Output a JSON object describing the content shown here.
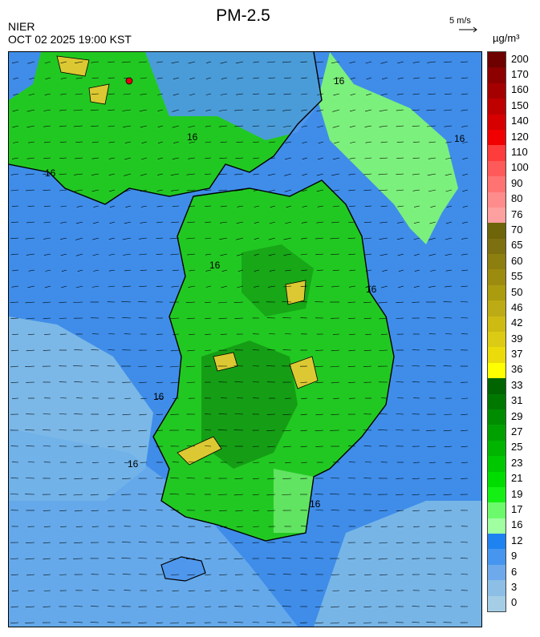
{
  "header": {
    "title": "PM-2.5",
    "organization": "NIER",
    "timestamp": "OCT 02 2025 19:00 KST",
    "wind_scale": "5 m/s",
    "unit": "µg/m³"
  },
  "contour_labels": [
    "16",
    "16",
    "16",
    "16",
    "16",
    "16",
    "16",
    "16",
    "16"
  ],
  "colors": {
    "sea_deep": "#1e78e6",
    "sea_mid": "#4f97ec",
    "sea_light": "#86bfe6",
    "low_green": "#7cf07c",
    "green": "#22c822",
    "dark_green": "#0f8c0f",
    "yellow": "#dcc832",
    "red": "#e6000a"
  },
  "legend": [
    {
      "label": "200",
      "color": "#6e0000"
    },
    {
      "label": "170",
      "color": "#8c0000"
    },
    {
      "label": "160",
      "color": "#a50000"
    },
    {
      "label": "150",
      "color": "#be0000"
    },
    {
      "label": "140",
      "color": "#d70000"
    },
    {
      "label": "120",
      "color": "#f00000"
    },
    {
      "label": "110",
      "color": "#ff3c3c"
    },
    {
      "label": "100",
      "color": "#ff5a5a"
    },
    {
      "label": "90",
      "color": "#ff7373"
    },
    {
      "label": "80",
      "color": "#ff8c8c"
    },
    {
      "label": "76",
      "color": "#ffa0a0"
    },
    {
      "label": "70",
      "color": "#6e640a"
    },
    {
      "label": "65",
      "color": "#7d7010"
    },
    {
      "label": "60",
      "color": "#8c7e0f"
    },
    {
      "label": "55",
      "color": "#9b8c0f"
    },
    {
      "label": "50",
      "color": "#aa9b0f"
    },
    {
      "label": "46",
      "color": "#bcab14"
    },
    {
      "label": "42",
      "color": "#cdbb14"
    },
    {
      "label": "39",
      "color": "#dccb14"
    },
    {
      "label": "37",
      "color": "#ebdb0a"
    },
    {
      "label": "36",
      "color": "#ffff00"
    },
    {
      "label": "33",
      "color": "#006400"
    },
    {
      "label": "31",
      "color": "#007800"
    },
    {
      "label": "29",
      "color": "#008c00"
    },
    {
      "label": "27",
      "color": "#00a000"
    },
    {
      "label": "25",
      "color": "#00b400"
    },
    {
      "label": "23",
      "color": "#00c800"
    },
    {
      "label": "21",
      "color": "#00dc00"
    },
    {
      "label": "19",
      "color": "#14f014"
    },
    {
      "label": "17",
      "color": "#6cfa6c"
    },
    {
      "label": "16",
      "color": "#a0ffa0"
    },
    {
      "label": "12",
      "color": "#1e82f0"
    },
    {
      "label": "9",
      "color": "#4696f0"
    },
    {
      "label": "6",
      "color": "#6eaaeb"
    },
    {
      "label": "3",
      "color": "#8cbee6"
    },
    {
      "label": "0",
      "color": "#a5cde6"
    }
  ]
}
